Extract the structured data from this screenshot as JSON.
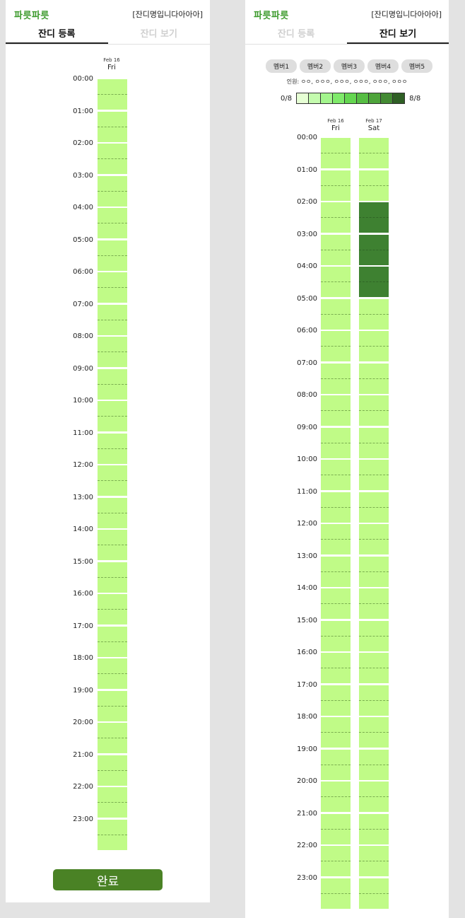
{
  "left_screen": {
    "logo": "파릇파릇",
    "title": "[잔디명입니다아아아]",
    "tabs": [
      {
        "label": "잔디 등록",
        "active": true
      },
      {
        "label": "잔디 보기",
        "active": false
      }
    ],
    "day": {
      "date": "Feb 16",
      "weekday": "Fri"
    },
    "times": [
      "00:00",
      "01:00",
      "02:00",
      "03:00",
      "04:00",
      "05:00",
      "06:00",
      "07:00",
      "08:00",
      "09:00",
      "10:00",
      "11:00",
      "12:00",
      "13:00",
      "14:00",
      "15:00",
      "16:00",
      "17:00",
      "18:00",
      "19:00",
      "20:00",
      "21:00",
      "22:00",
      "23:00"
    ],
    "done_button": "완료"
  },
  "right_screen": {
    "logo": "파릇파릇",
    "title": "[잔디명입니다아아아]",
    "tabs": [
      {
        "label": "잔디 등록",
        "active": false
      },
      {
        "label": "잔디 보기",
        "active": true
      }
    ],
    "member_chips": [
      "멤버1",
      "멤버2",
      "멤버3",
      "멤버4",
      "멤버5"
    ],
    "members_line": "인원: ㅇㅇ, ㅇㅇㅇ, ㅇㅇㅇ, ㅇㅇㅇ, ㅇㅇㅇ, ㅇㅇㅇ",
    "scale": {
      "min_label": "0/8",
      "max_label": "8/8",
      "colors": [
        "#e6ffd4",
        "#c4fbae",
        "#a3f58d",
        "#7fea6a",
        "#64d650",
        "#56bd43",
        "#4ea43b",
        "#438a33",
        "#2f5f25"
      ]
    },
    "days": [
      {
        "date": "Feb 16",
        "weekday": "Fri",
        "dark_hours": []
      },
      {
        "date": "Feb 17",
        "weekday": "Sat",
        "dark_hours": [
          2,
          3,
          4
        ]
      }
    ],
    "times": [
      "00:00",
      "01:00",
      "02:00",
      "03:00",
      "04:00",
      "05:00",
      "06:00",
      "07:00",
      "08:00",
      "09:00",
      "10:00",
      "11:00",
      "12:00",
      "13:00",
      "14:00",
      "15:00",
      "16:00",
      "17:00",
      "18:00",
      "19:00",
      "20:00",
      "21:00",
      "22:00",
      "23:00"
    ]
  },
  "colors": {
    "available": "#c0fb87",
    "full": "#3e8131",
    "button": "#4a8225",
    "logo": "#3c9a2c"
  }
}
